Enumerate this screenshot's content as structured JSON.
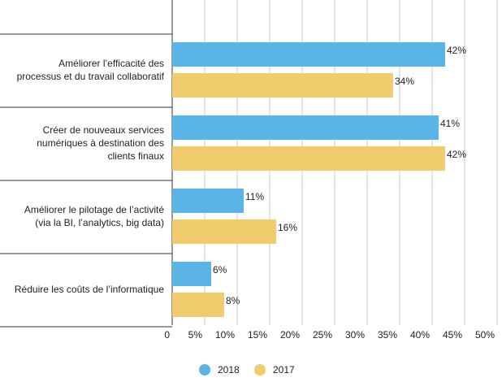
{
  "chart_data": {
    "type": "hbar",
    "categories": [
      "Améliorer l’efficacité des\nprocessus et du travail collaboratif",
      "Créer de nouveaux services\nnumériques à destination des\nclients finaux",
      "Améliorer le pilotage de l’activité\n(via la BI, l’analytics, big data)",
      "Réduire les coûts de l’informatique"
    ],
    "series": [
      {
        "name": "2018",
        "color": "#5ab4e5",
        "values": [
          42,
          41,
          11,
          6
        ],
        "value_labels": [
          "42%",
          "41%",
          "11%",
          "6%"
        ]
      },
      {
        "name": "2017",
        "color": "#f0cc6c",
        "values": [
          34,
          42,
          16,
          8
        ],
        "value_labels": [
          "34%",
          "42%",
          "16%",
          "8%"
        ]
      }
    ],
    "xlim": [
      0,
      50
    ],
    "xticks": [
      0,
      {
        "value": 5,
        "label": "5%"
      },
      {
        "value": 10,
        "label": "10%"
      },
      {
        "value": 15,
        "label": "15%"
      },
      {
        "value": 20,
        "label": "20%"
      },
      {
        "value": 25,
        "label": "25%"
      },
      {
        "value": 30,
        "label": "30%"
      },
      {
        "value": 35,
        "label": "35%"
      },
      {
        "value": 40,
        "label": "40%"
      },
      {
        "value": 45,
        "label": "45%"
      },
      {
        "value": 50,
        "label": "50%"
      }
    ],
    "grid": true,
    "legend": "bottom"
  }
}
